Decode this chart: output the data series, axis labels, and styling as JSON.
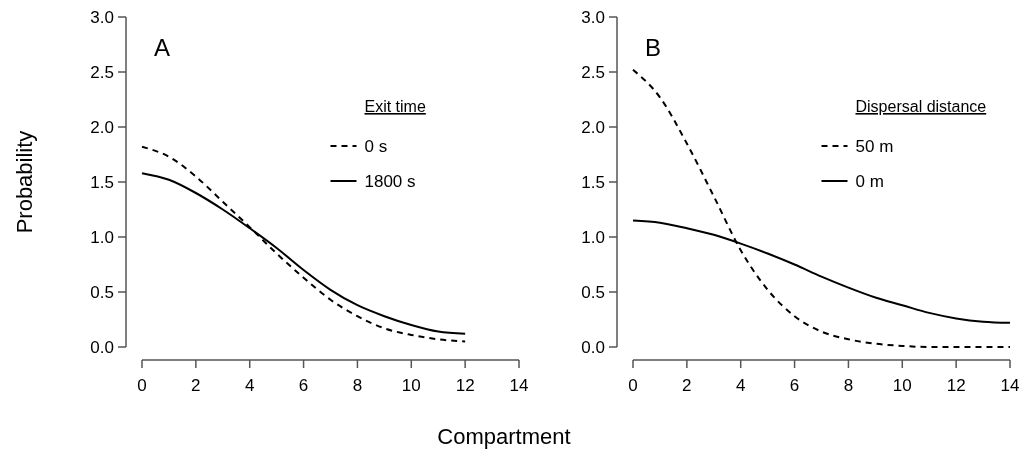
{
  "chart_data": [
    {
      "type": "line",
      "ylabel": "Probability",
      "xlabel": "Compartment",
      "legend_title": "Exit time",
      "annotations": [
        "A"
      ],
      "legend": "top right",
      "xlim": [
        0,
        14
      ],
      "xticks": [
        0,
        2,
        4,
        6,
        8,
        10,
        12,
        14
      ],
      "ylim": [
        0,
        3
      ],
      "yticks": [
        {
          "value": 0,
          "label": "0.0"
        },
        {
          "value": 0.5,
          "label": "0.5"
        },
        {
          "value": 1,
          "label": "1.0"
        },
        {
          "value": 1.5,
          "label": "1.5"
        },
        {
          "value": 2,
          "label": "2.0"
        },
        {
          "value": 2.5,
          "label": "2.5"
        },
        {
          "value": 3,
          "label": "3.0"
        }
      ],
      "x": [
        0,
        1,
        2,
        3,
        4,
        5,
        6,
        7,
        8,
        9,
        10,
        11,
        12
      ],
      "series": [
        {
          "name": "0 s",
          "color": "#000000",
          "line_style": "dashed",
          "values": [
            1.82,
            1.73,
            1.55,
            1.32,
            1.09,
            0.85,
            0.63,
            0.43,
            0.28,
            0.17,
            0.11,
            0.07,
            0.05
          ]
        },
        {
          "name": "1800 s",
          "color": "#000000",
          "line_style": "solid",
          "values": [
            1.58,
            1.52,
            1.4,
            1.25,
            1.08,
            0.9,
            0.7,
            0.52,
            0.38,
            0.28,
            0.2,
            0.14,
            0.12
          ]
        }
      ]
    },
    {
      "type": "line",
      "legend_title": "Dispersal distance",
      "annotations": [
        "B"
      ],
      "legend": "top right",
      "xlim": [
        0,
        14
      ],
      "xticks": [
        0,
        2,
        4,
        6,
        8,
        10,
        12,
        14
      ],
      "ylim": [
        0,
        3
      ],
      "yticks": [
        {
          "value": 0,
          "label": "0.0"
        },
        {
          "value": 0.5,
          "label": "0.5"
        },
        {
          "value": 1,
          "label": "1.0"
        },
        {
          "value": 1.5,
          "label": "1.5"
        },
        {
          "value": 2,
          "label": "2.0"
        },
        {
          "value": 2.5,
          "label": "2.5"
        },
        {
          "value": 3,
          "label": "3.0"
        }
      ],
      "x": [
        0,
        1,
        2,
        3,
        4,
        5,
        6,
        7,
        8,
        9,
        10,
        11,
        12,
        13,
        14
      ],
      "series": [
        {
          "name": "50 m",
          "color": "#000000",
          "line_style": "dashed",
          "values": [
            2.52,
            2.27,
            1.85,
            1.37,
            0.88,
            0.52,
            0.28,
            0.14,
            0.07,
            0.03,
            0.01,
            0,
            0,
            0,
            0
          ]
        },
        {
          "name": "0 m",
          "color": "#000000",
          "line_style": "solid",
          "values": [
            1.15,
            1.13,
            1.08,
            1.02,
            0.94,
            0.85,
            0.75,
            0.64,
            0.54,
            0.45,
            0.38,
            0.31,
            0.26,
            0.23,
            0.22
          ]
        }
      ]
    }
  ]
}
